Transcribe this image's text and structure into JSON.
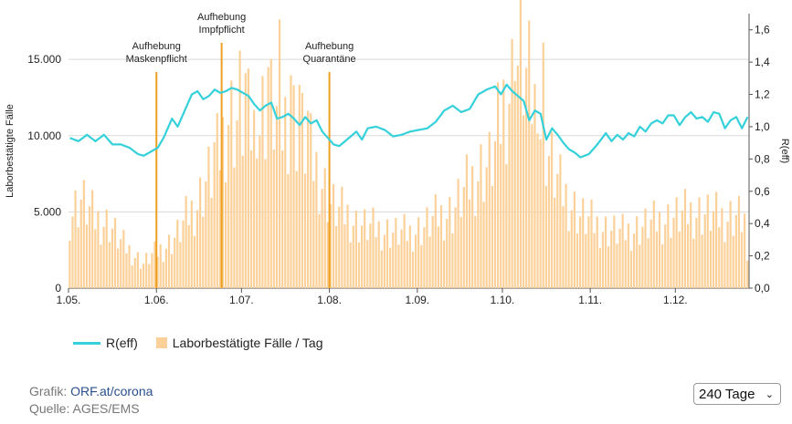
{
  "chart_data": {
    "type": "bar",
    "title": "",
    "ylabel_left": "Laborbestätigte Fälle",
    "ylabel_right": "R(eff)",
    "ylim_left": [
      0,
      18000
    ],
    "ylim_right": [
      0,
      1.7
    ],
    "yticks_left": [
      "0",
      "5.000",
      "10.000",
      "15.000"
    ],
    "yticks_left_values": [
      0,
      5000,
      10000,
      15000
    ],
    "yticks_right": [
      "0,0",
      "0,2",
      "0,4",
      "0,6",
      "0,8",
      "1,0",
      "1,2",
      "1,4",
      "1,6"
    ],
    "yticks_right_values": [
      0,
      0.2,
      0.4,
      0.6,
      0.8,
      1.0,
      1.2,
      1.4,
      1.6
    ],
    "x_ticks": [
      {
        "label": "1.05.",
        "day": 0
      },
      {
        "label": "1.06.",
        "day": 31
      },
      {
        "label": "1.07.",
        "day": 61
      },
      {
        "label": "1.08.",
        "day": 92
      },
      {
        "label": "1.09.",
        "day": 123
      },
      {
        "label": "1.10.",
        "day": 153
      },
      {
        "label": "1.11.",
        "day": 184
      },
      {
        "label": "1.12.",
        "day": 214
      }
    ],
    "n_days": 240,
    "grid": true,
    "series": [
      {
        "name": "Laborbestätigte Fälle / Tag",
        "color": "#fbd199",
        "knots_day": [
          0,
          4,
          9,
          14,
          18,
          22,
          26,
          28,
          31,
          35,
          38,
          42,
          45,
          48,
          50,
          53,
          56,
          58,
          61,
          64,
          66,
          68,
          70,
          72,
          75,
          77,
          79,
          82,
          85,
          88,
          92,
          95,
          98,
          101,
          105,
          110,
          115,
          120,
          125,
          130,
          135,
          140,
          145,
          148,
          150,
          153,
          155,
          157,
          159,
          161,
          163,
          165,
          167,
          170,
          173,
          177,
          180,
          185,
          190,
          195,
          200,
          205,
          210,
          215,
          220,
          225,
          230,
          235,
          239
        ],
        "knots_value": [
          4800,
          5800,
          4500,
          4200,
          3000,
          2300,
          1600,
          2000,
          2400,
          2900,
          3500,
          4800,
          5500,
          7000,
          7500,
          9000,
          11500,
          11000,
          11000,
          10500,
          10000,
          11500,
          12000,
          11500,
          10500,
          11500,
          11000,
          10000,
          8500,
          7500,
          5500,
          5000,
          4800,
          4200,
          4000,
          3800,
          3600,
          3600,
          4000,
          4700,
          5000,
          6500,
          7800,
          8000,
          9000,
          12000,
          13000,
          14000,
          15200,
          13500,
          12500,
          11000,
          10000,
          8000,
          6500,
          5500,
          4700,
          4200,
          3800,
          3600,
          3900,
          4200,
          4500,
          4700,
          5000,
          4800,
          4600,
          4800,
          4500
        ],
        "spikes": [
          [
            51,
            1000
          ],
          [
            60,
            1500
          ],
          [
            62,
            2500
          ],
          [
            66,
            2000
          ],
          [
            70,
            2500
          ],
          [
            74,
            3000
          ],
          [
            78,
            3500
          ],
          [
            81,
            3000
          ],
          [
            84,
            2000
          ],
          [
            157,
            3500
          ],
          [
            159,
            4500
          ],
          [
            165,
            3000
          ],
          [
            167,
            4000
          ]
        ]
      },
      {
        "name": "R(eff)",
        "color": "#35d1da",
        "knots_day": [
          0,
          3,
          6,
          9,
          12,
          15,
          18,
          21,
          24,
          26,
          28,
          31,
          33,
          36,
          38,
          41,
          43,
          45,
          47,
          49,
          51,
          53,
          55,
          57,
          59,
          61,
          63,
          65,
          67,
          69,
          71,
          73,
          75,
          77,
          79,
          81,
          83,
          85,
          87,
          89,
          91,
          93,
          95,
          97,
          99,
          101,
          103,
          105,
          108,
          111,
          114,
          117,
          120,
          123,
          126,
          129,
          132,
          135,
          138,
          141,
          144,
          147,
          150,
          152,
          154,
          156,
          158,
          160,
          162,
          164,
          166,
          168,
          170,
          172,
          174,
          176,
          178,
          180,
          183,
          186,
          189,
          191,
          193,
          195,
          197,
          199,
          201,
          203,
          205,
          207,
          209,
          211,
          213,
          215,
          217,
          219,
          221,
          223,
          225,
          227,
          229,
          231,
          233,
          235,
          237,
          239
        ],
        "knots_value": [
          0.93,
          0.91,
          0.95,
          0.91,
          0.95,
          0.89,
          0.89,
          0.87,
          0.83,
          0.82,
          0.84,
          0.87,
          0.93,
          1.05,
          1.0,
          1.12,
          1.2,
          1.22,
          1.17,
          1.19,
          1.23,
          1.21,
          1.22,
          1.24,
          1.23,
          1.21,
          1.19,
          1.14,
          1.1,
          1.13,
          1.15,
          1.05,
          1.06,
          1.08,
          1.05,
          1.01,
          1.06,
          1.02,
          1.04,
          0.97,
          0.93,
          0.89,
          0.88,
          0.91,
          0.94,
          0.97,
          0.92,
          0.99,
          1.0,
          0.98,
          0.94,
          0.95,
          0.97,
          0.98,
          0.99,
          1.03,
          1.1,
          1.13,
          1.09,
          1.11,
          1.2,
          1.23,
          1.25,
          1.2,
          1.26,
          1.22,
          1.19,
          1.16,
          1.04,
          1.1,
          1.08,
          0.92,
          0.99,
          0.95,
          0.9,
          0.86,
          0.84,
          0.81,
          0.83,
          0.89,
          0.96,
          0.91,
          0.95,
          0.92,
          0.96,
          0.94,
          1.0,
          0.97,
          1.02,
          1.04,
          1.02,
          1.07,
          1.07,
          1.01,
          1.06,
          1.09,
          1.05,
          1.06,
          1.03,
          1.09,
          1.08,
          0.99,
          1.04,
          1.06,
          0.99,
          1.06
        ]
      }
    ],
    "annotations": [
      {
        "day": 31,
        "lines": [
          "Aufhebung",
          "Maskenpflicht"
        ],
        "color": "#f0a020"
      },
      {
        "day": 54,
        "lines": [
          "Aufhebung",
          "Impfpflicht"
        ],
        "color": "#f0a020"
      },
      {
        "day": 92,
        "lines": [
          "Aufhebung",
          "Quarantäne"
        ],
        "color": "#f0a020"
      }
    ]
  },
  "legend": {
    "line_label": "R(eff)",
    "bar_label": "Laborbestätigte Fälle / Tag",
    "line_color": "#35d1da",
    "bar_color": "#fbd199"
  },
  "footer": {
    "graphic_prefix": "Grafik: ",
    "graphic_link": "ORF.at/corona",
    "source_prefix": "Quelle: ",
    "source_text": "AGES/EMS"
  },
  "range_select": {
    "value": "240 Tage"
  }
}
